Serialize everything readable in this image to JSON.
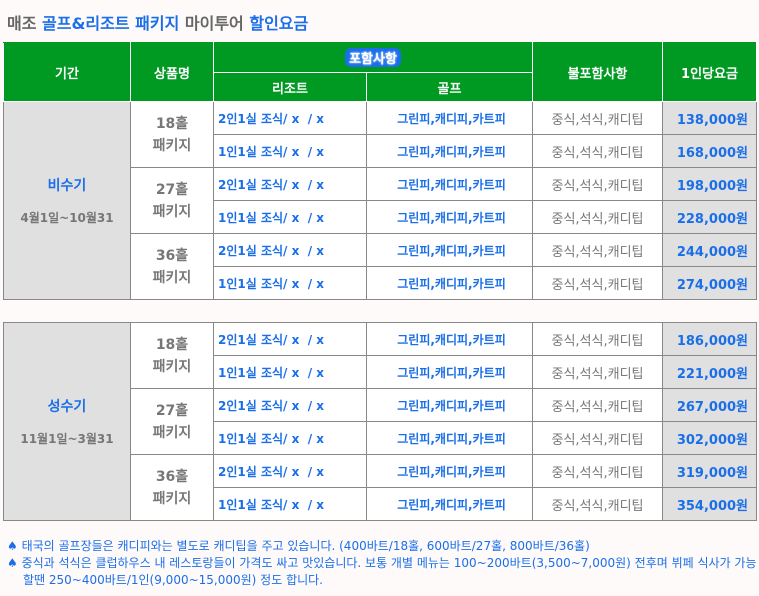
{
  "title": {
    "p1": "매조 ",
    "p2": "골프&리조트 패키지",
    "p3": " 마이투어 ",
    "p4": "할인요금"
  },
  "header": {
    "period": "기간",
    "product": "상품명",
    "included": "포함사항",
    "resort": "리조트",
    "golf": "골프",
    "excluded": "불포함사항",
    "price": "1인당요금"
  },
  "seasons": [
    {
      "name": "비수기",
      "dates": "4월1일~10월31",
      "groups": [
        {
          "product": "18홀\n패키지",
          "rows": [
            {
              "resort": "2인1실 조식/ x  / x",
              "golf": "그린피,캐디피,카트피",
              "excl": "중식,석식,캐디팁",
              "price": "138,000원"
            },
            {
              "resort": "1인1실 조식/ x  / x",
              "golf": "그린피,캐디피,카트피",
              "excl": "중식,석식,캐디팁",
              "price": "168,000원"
            }
          ]
        },
        {
          "product": "27홀\n패키지",
          "rows": [
            {
              "resort": "2인1실 조식/ x  / x",
              "golf": "그린피,캐디피,카트피",
              "excl": "중식,석식,캐디팁",
              "price": "198,000원"
            },
            {
              "resort": "1인1실 조식/ x  / x",
              "golf": "그린피,캐디피,카트피",
              "excl": "중식,석식,캐디팁",
              "price": "228,000원"
            }
          ]
        },
        {
          "product": "36홀\n패키지",
          "rows": [
            {
              "resort": "2인1실 조식/ x  / x",
              "golf": "그린피,캐디피,카트피",
              "excl": "중식,석식,캐디팁",
              "price": "244,000원"
            },
            {
              "resort": "1인1실 조식/ x  / x",
              "golf": "그린피,캐디피,카트피",
              "excl": "중식,석식,캐디팁",
              "price": "274,000원"
            }
          ]
        }
      ]
    },
    {
      "name": "성수기",
      "dates": "11월1일~3월31",
      "groups": [
        {
          "product": "18홀\n패키지",
          "rows": [
            {
              "resort": "2인1실 조식/ x  / x",
              "golf": "그린피,캐디피,카트피",
              "excl": "중식,석식,캐디팁",
              "price": "186,000원"
            },
            {
              "resort": "1인1실 조식/ x  / x",
              "golf": "그린피,캐디피,카트피",
              "excl": "중식,석식,캐디팁",
              "price": "221,000원"
            }
          ]
        },
        {
          "product": "27홀\n패키지",
          "rows": [
            {
              "resort": "2인1실 조식/ x  / x",
              "golf": "그린피,캐디피,카트피",
              "excl": "중식,석식,캐디팁",
              "price": "267,000원"
            },
            {
              "resort": "1인1실 조식/ x  / x",
              "golf": "그린피,캐디피,카트피",
              "excl": "중식,석식,캐디팁",
              "price": "302,000원"
            }
          ]
        },
        {
          "product": "36홀\n패키지",
          "rows": [
            {
              "resort": "2인1실 조식/ x  / x",
              "golf": "그린피,캐디피,카트피",
              "excl": "중식,석식,캐디팁",
              "price": "319,000원"
            },
            {
              "resort": "1인1실 조식/ x  / x",
              "golf": "그린피,캐디피,카트피",
              "excl": "중식,석식,캐디팁",
              "price": "354,000원"
            }
          ]
        }
      ]
    }
  ],
  "notes": [
    "♠ 태국의 골프장들은 캐디피와는 별도로 캐디팁을 주고 있습니다. (400바트/18홀, 600바트/27홀, 800바트/36홀)",
    "♠ 중식과 석식은 클럽하우스 내 레스토랑들이 가격도 싸고 맛있습니다. 보통 개별 메뉴는 100~200바트(3,500~7,000원) 전후며 뷔페 식사가 가능할땐 250~400바트/1인(9,000~15,000원) 정도 합니다."
  ]
}
